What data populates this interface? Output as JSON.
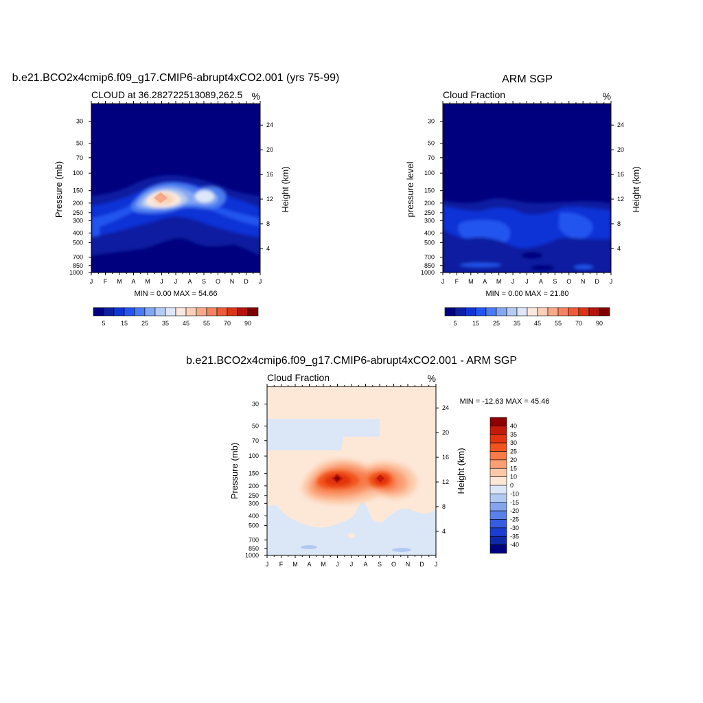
{
  "panels": [
    {
      "id": "model",
      "main_title": "b.e21.BCO2x4cmip6.f09_g17.CMIP6-abrupt4xCO2.001 (yrs 75-99)",
      "left_title": "CLOUD at 36.282722513089,262.5",
      "right_title": "%",
      "ylabel": "Pressure (mb)",
      "ylabel_right": "Height (km)",
      "stats": "MIN =   0.00 MAX =  54.66"
    },
    {
      "id": "obs",
      "main_title": "ARM SGP",
      "left_title": "Cloud Fraction",
      "right_title": "%",
      "ylabel": "pressure level",
      "ylabel_right": "Height (km)",
      "stats": "MIN =   0.00 MAX =  21.80"
    },
    {
      "id": "diff",
      "main_title": "b.e21.BCO2x4cmip6.f09_g17.CMIP6-abrupt4xCO2.001 - ARM SGP",
      "left_title": "Cloud Fraction",
      "right_title": "%",
      "ylabel": "Pressure (mb)",
      "ylabel_right": "Height (km)",
      "stats": "MIN = -12.63 MAX =  45.46"
    }
  ],
  "chart_data": [
    {
      "type": "heatmap",
      "title": "b.e21.BCO2x4cmip6.f09_g17.CMIP6-abrupt4xCO2.001 (yrs 75-99)",
      "subtitle": "CLOUD at 36.282722513089,262.5",
      "units": "%",
      "xlabel": "",
      "ylabel": "Pressure (mb)",
      "ylabel_right": "Height (km)",
      "x": [
        "J",
        "F",
        "M",
        "A",
        "M",
        "J",
        "J",
        "A",
        "S",
        "O",
        "N",
        "D",
        "J"
      ],
      "y_ticks": [
        30,
        50,
        70,
        100,
        150,
        200,
        250,
        300,
        400,
        500,
        700,
        850,
        1000
      ],
      "y_right_ticks": [
        24,
        20,
        16,
        12,
        8,
        4
      ],
      "ylim": [
        1000,
        20
      ],
      "y_scale": "log",
      "colorbar_labels": [
        "5",
        "15",
        "25",
        "35",
        "45",
        "55",
        "70",
        "90"
      ],
      "colorbar_colors": [
        "#00007f",
        "#0c1fa0",
        "#1133d6",
        "#2454f0",
        "#4a7bf2",
        "#84a6f2",
        "#b4cbf2",
        "#dde7f7",
        "#fbe8dc",
        "#fbd0b8",
        "#f7aa8a",
        "#f4835f",
        "#ee5a38",
        "#da3418",
        "#b4140c",
        "#7d0000"
      ],
      "min": 0.0,
      "max": 54.66,
      "features": [
        {
          "month": 5.3,
          "pressure": 200,
          "value": 54
        },
        {
          "month": 7.8,
          "pressure": 180,
          "value": 42
        }
      ]
    },
    {
      "type": "heatmap",
      "title": "ARM SGP",
      "subtitle": "Cloud Fraction",
      "units": "%",
      "xlabel": "",
      "ylabel": "pressure level",
      "ylabel_right": "Height (km)",
      "x": [
        "J",
        "F",
        "M",
        "A",
        "M",
        "J",
        "J",
        "A",
        "S",
        "O",
        "N",
        "D",
        "J"
      ],
      "y_ticks": [
        30,
        50,
        70,
        100,
        150,
        200,
        250,
        300,
        400,
        500,
        700,
        850,
        1000
      ],
      "y_right_ticks": [
        24,
        20,
        16,
        12,
        8,
        4
      ],
      "ylim": [
        1000,
        20
      ],
      "y_scale": "log",
      "colorbar_labels": [
        "5",
        "15",
        "25",
        "35",
        "45",
        "55",
        "70",
        "90"
      ],
      "colorbar_colors": [
        "#00007f",
        "#0c1fa0",
        "#1133d6",
        "#2454f0",
        "#4a7bf2",
        "#84a6f2",
        "#b4cbf2",
        "#dde7f7",
        "#fbe8dc",
        "#fbd0b8",
        "#f7aa8a",
        "#f4835f",
        "#ee5a38",
        "#da3418",
        "#b4140c",
        "#7d0000"
      ],
      "min": 0.0,
      "max": 21.8
    },
    {
      "type": "heatmap",
      "title": "b.e21.BCO2x4cmip6.f09_g17.CMIP6-abrupt4xCO2.001 - ARM SGP",
      "subtitle": "Cloud Fraction",
      "units": "%",
      "xlabel": "",
      "ylabel": "Pressure (mb)",
      "ylabel_right": "Height (km)",
      "x": [
        "J",
        "F",
        "M",
        "A",
        "M",
        "J",
        "J",
        "A",
        "S",
        "O",
        "N",
        "D",
        "J"
      ],
      "y_ticks": [
        30,
        50,
        70,
        100,
        150,
        200,
        250,
        300,
        400,
        500,
        700,
        850,
        1000
      ],
      "y_right_ticks": [
        24,
        20,
        16,
        12,
        8,
        4
      ],
      "ylim": [
        1000,
        20
      ],
      "y_scale": "log",
      "colorbar_labels": [
        "40",
        "35",
        "30",
        "25",
        "20",
        "15",
        "10",
        "0",
        "-10",
        "-15",
        "-20",
        "-25",
        "-30",
        "-35",
        "-40"
      ],
      "colorbar_colors": [
        "#8c0000",
        "#c41a0a",
        "#e2340f",
        "#f2541f",
        "#f77a48",
        "#fa9f73",
        "#fcc9a8",
        "#fde8d8",
        "#dbe7f7",
        "#b2c9f2",
        "#85a4ee",
        "#5a80ea",
        "#355de2",
        "#1b3ed0",
        "#0e28a8",
        "#00007f"
      ],
      "min": -12.63,
      "max": 45.46,
      "features": [
        {
          "month": 5.0,
          "pressure": 190,
          "value": 45
        },
        {
          "month": 8.1,
          "pressure": 190,
          "value": 38
        }
      ]
    }
  ]
}
